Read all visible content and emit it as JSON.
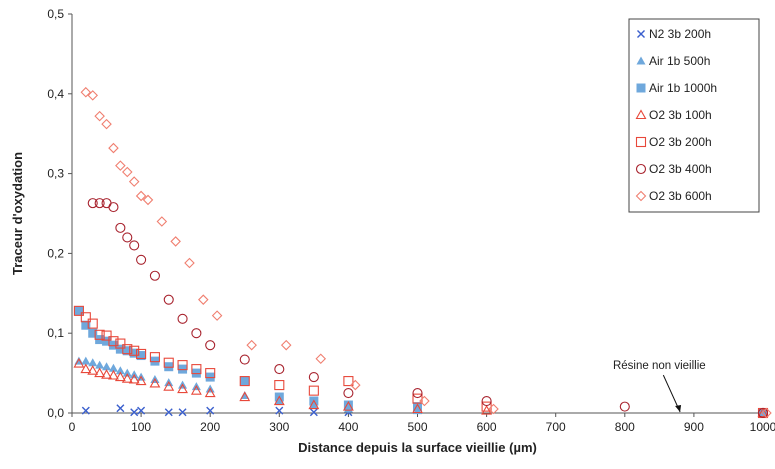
{
  "chart_data": {
    "type": "scatter",
    "xlabel": "Distance depuis la surface vieillie (µm)",
    "ylabel": "Traceur d'oxydation",
    "xlim": [
      0,
      1000
    ],
    "ylim": [
      0,
      0.5
    ],
    "x_ticks": [
      "0",
      "100",
      "200",
      "300",
      "400",
      "500",
      "600",
      "700",
      "800",
      "900",
      "1000"
    ],
    "y_ticks": [
      "0,0",
      "0,1",
      "0,2",
      "0,3",
      "0,4",
      "0,5"
    ],
    "grid": false,
    "legend_position": "top-right",
    "annotation": {
      "text": "Résine non vieillie",
      "target": [
        880,
        0.0
      ],
      "from": [
        850,
        0.06
      ]
    },
    "series": [
      {
        "name": "N2 3b 200h",
        "marker": "x",
        "color": "#3a5fcd",
        "points": [
          [
            20,
            0.003
          ],
          [
            70,
            0.006
          ],
          [
            90,
            0.001
          ],
          [
            100,
            0.003
          ],
          [
            140,
            0.001
          ],
          [
            160,
            0.001
          ],
          [
            200,
            0.003
          ],
          [
            300,
            0.003
          ],
          [
            350,
            0.001
          ],
          [
            400,
            0.001
          ],
          [
            1000,
            0.0
          ]
        ]
      },
      {
        "name": "Air 1b 500h",
        "marker": "triangle-filled",
        "color": "#6fa8dc",
        "points": [
          [
            10,
            0.065
          ],
          [
            20,
            0.065
          ],
          [
            30,
            0.063
          ],
          [
            40,
            0.06
          ],
          [
            50,
            0.058
          ],
          [
            60,
            0.056
          ],
          [
            70,
            0.053
          ],
          [
            80,
            0.05
          ],
          [
            90,
            0.048
          ],
          [
            100,
            0.045
          ],
          [
            120,
            0.042
          ],
          [
            140,
            0.038
          ],
          [
            160,
            0.035
          ],
          [
            180,
            0.033
          ],
          [
            200,
            0.03
          ],
          [
            250,
            0.022
          ],
          [
            300,
            0.015
          ],
          [
            350,
            0.01
          ],
          [
            400,
            0.005
          ],
          [
            500,
            0.003
          ],
          [
            1000,
            0.0
          ]
        ]
      },
      {
        "name": "Air 1b 1000h",
        "marker": "square-filled",
        "color": "#6fa8dc",
        "points": [
          [
            10,
            0.128
          ],
          [
            20,
            0.11
          ],
          [
            30,
            0.1
          ],
          [
            40,
            0.092
          ],
          [
            50,
            0.09
          ],
          [
            60,
            0.085
          ],
          [
            70,
            0.08
          ],
          [
            80,
            0.078
          ],
          [
            90,
            0.075
          ],
          [
            100,
            0.072
          ],
          [
            120,
            0.065
          ],
          [
            140,
            0.058
          ],
          [
            160,
            0.055
          ],
          [
            180,
            0.05
          ],
          [
            200,
            0.045
          ],
          [
            250,
            0.04
          ],
          [
            300,
            0.02
          ],
          [
            350,
            0.015
          ],
          [
            400,
            0.01
          ],
          [
            500,
            0.008
          ],
          [
            1000,
            0.0
          ]
        ]
      },
      {
        "name": "O2 3b 100h",
        "marker": "triangle-open",
        "color": "#e8483a",
        "points": [
          [
            10,
            0.062
          ],
          [
            20,
            0.055
          ],
          [
            30,
            0.053
          ],
          [
            40,
            0.05
          ],
          [
            50,
            0.048
          ],
          [
            60,
            0.047
          ],
          [
            70,
            0.045
          ],
          [
            80,
            0.043
          ],
          [
            90,
            0.042
          ],
          [
            100,
            0.04
          ],
          [
            120,
            0.037
          ],
          [
            140,
            0.033
          ],
          [
            160,
            0.03
          ],
          [
            180,
            0.028
          ],
          [
            200,
            0.025
          ],
          [
            250,
            0.02
          ],
          [
            300,
            0.015
          ],
          [
            350,
            0.01
          ],
          [
            400,
            0.008
          ],
          [
            500,
            0.005
          ],
          [
            600,
            0.003
          ],
          [
            1000,
            0.0
          ]
        ]
      },
      {
        "name": "O2 3b 200h",
        "marker": "square-open",
        "color": "#e8483a",
        "points": [
          [
            10,
            0.128
          ],
          [
            20,
            0.12
          ],
          [
            30,
            0.112
          ],
          [
            40,
            0.098
          ],
          [
            50,
            0.097
          ],
          [
            60,
            0.09
          ],
          [
            70,
            0.087
          ],
          [
            80,
            0.08
          ],
          [
            90,
            0.078
          ],
          [
            100,
            0.074
          ],
          [
            120,
            0.07
          ],
          [
            140,
            0.063
          ],
          [
            160,
            0.06
          ],
          [
            180,
            0.055
          ],
          [
            200,
            0.05
          ],
          [
            250,
            0.04
          ],
          [
            300,
            0.035
          ],
          [
            350,
            0.028
          ],
          [
            400,
            0.04
          ],
          [
            500,
            0.018
          ],
          [
            600,
            0.008
          ],
          [
            1000,
            0.0
          ]
        ]
      },
      {
        "name": "O2 3b 400h",
        "marker": "circle-open",
        "color": "#a8232e",
        "points": [
          [
            30,
            0.263
          ],
          [
            40,
            0.263
          ],
          [
            50,
            0.263
          ],
          [
            60,
            0.258
          ],
          [
            70,
            0.232
          ],
          [
            80,
            0.22
          ],
          [
            90,
            0.21
          ],
          [
            100,
            0.192
          ],
          [
            120,
            0.172
          ],
          [
            140,
            0.142
          ],
          [
            160,
            0.118
          ],
          [
            180,
            0.1
          ],
          [
            200,
            0.085
          ],
          [
            250,
            0.067
          ],
          [
            300,
            0.055
          ],
          [
            350,
            0.045
          ],
          [
            400,
            0.025
          ],
          [
            500,
            0.025
          ],
          [
            600,
            0.015
          ],
          [
            800,
            0.008
          ],
          [
            1000,
            0.0
          ]
        ]
      },
      {
        "name": "O2 3b 600h",
        "marker": "diamond-open",
        "color": "#f07f70",
        "points": [
          [
            20,
            0.402
          ],
          [
            30,
            0.398
          ],
          [
            40,
            0.372
          ],
          [
            50,
            0.362
          ],
          [
            60,
            0.332
          ],
          [
            70,
            0.31
          ],
          [
            80,
            0.302
          ],
          [
            90,
            0.29
          ],
          [
            100,
            0.272
          ],
          [
            110,
            0.267
          ],
          [
            130,
            0.24
          ],
          [
            150,
            0.215
          ],
          [
            170,
            0.188
          ],
          [
            190,
            0.142
          ],
          [
            210,
            0.122
          ],
          [
            260,
            0.085
          ],
          [
            310,
            0.085
          ],
          [
            360,
            0.068
          ],
          [
            410,
            0.035
          ],
          [
            510,
            0.015
          ],
          [
            610,
            0.005
          ],
          [
            1005,
            0.0
          ]
        ]
      }
    ]
  }
}
